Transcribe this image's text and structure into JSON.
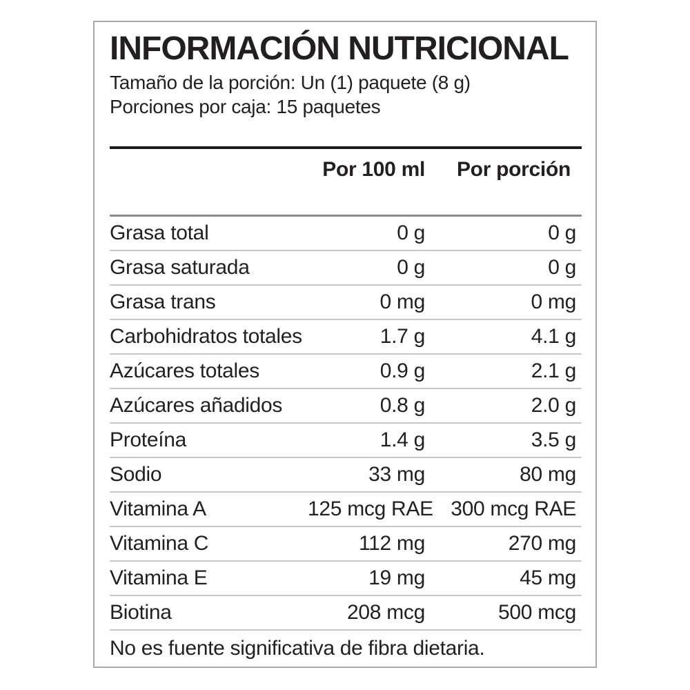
{
  "label": {
    "title": "INFORMACIÓN NUTRICIONAL",
    "serving_size": "Tamaño de la porción: Un (1) paquete (8 g)",
    "servings_per_box": "Porciones por caja: 15 paquetes",
    "columns": [
      "Por 100 ml",
      "Por porción"
    ],
    "rows": [
      {
        "name": "Grasa total",
        "per_100ml": "0 g",
        "per_serving": "0 g"
      },
      {
        "name": "Grasa saturada",
        "per_100ml": "0 g",
        "per_serving": "0 g"
      },
      {
        "name": "Grasa trans",
        "per_100ml": "0 mg",
        "per_serving": "0 mg"
      },
      {
        "name": "Carbohidratos totales",
        "per_100ml": "1.7 g",
        "per_serving": "4.1 g"
      },
      {
        "name": "Azúcares totales",
        "per_100ml": "0.9 g",
        "per_serving": "2.1 g"
      },
      {
        "name": "Azúcares añadidos",
        "per_100ml": "0.8 g",
        "per_serving": "2.0 g"
      },
      {
        "name": "Proteína",
        "per_100ml": "1.4 g",
        "per_serving": "3.5 g"
      },
      {
        "name": "Sodio",
        "per_100ml": "33 mg",
        "per_serving": "80 mg"
      },
      {
        "name": "Vitamina A",
        "per_100ml": "125 mcg RAE",
        "per_serving": "300 mcg RAE"
      },
      {
        "name": "Vitamina C",
        "per_100ml": "112 mg",
        "per_serving": "270 mg"
      },
      {
        "name": "Vitamina E",
        "per_100ml": "19 mg",
        "per_serving": "45 mg"
      },
      {
        "name": "Biotina",
        "per_100ml": "208 mcg",
        "per_serving": "500 mcg"
      }
    ],
    "footnote": "No es fuente significativa de fibra dietaria.",
    "colors": {
      "text": "#231f20",
      "box_border": "#a8a6a7",
      "thick_rule": "#1d1d1b",
      "header_rule": "#8a8a8a",
      "row_rule": "#c9c8c8",
      "background": "#ffffff"
    }
  }
}
